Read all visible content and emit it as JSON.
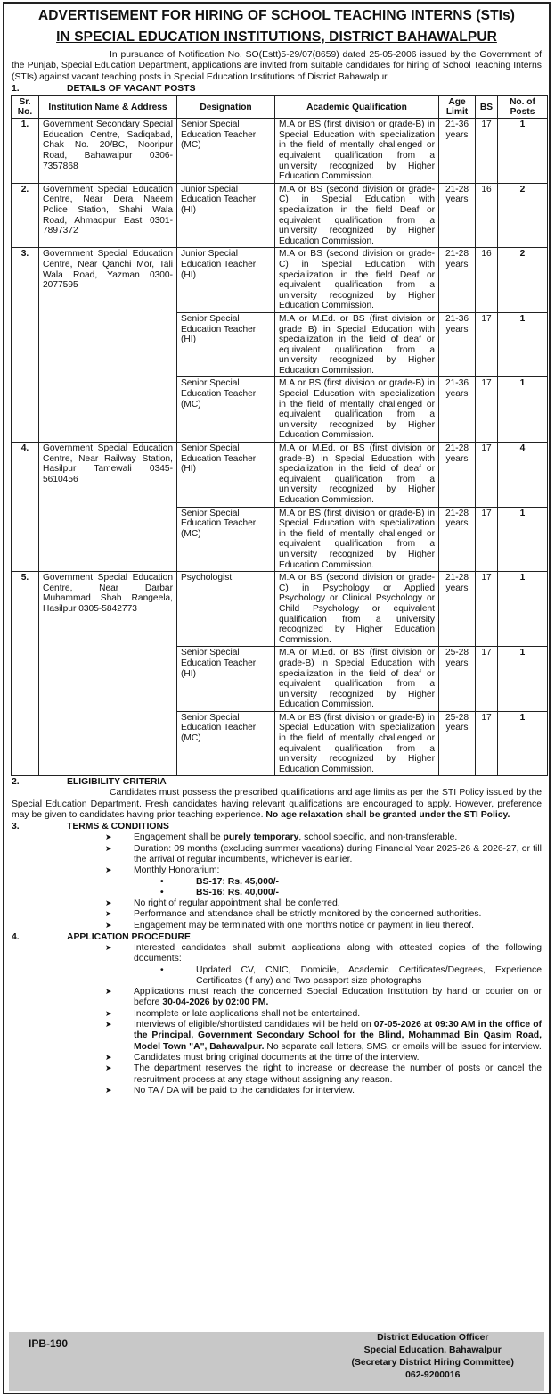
{
  "title_line1": "ADVERTISEMENT FOR HIRING OF SCHOOL TEACHING INTERNS (STIs)",
  "title_line2": "IN SPECIAL EDUCATION INSTITUTIONS, DISTRICT BAHAWALPUR",
  "intro": "In pursuance of Notification No. SO(Estt)5-29/07(8659) dated 25-05-2006 issued by the Government of the Punjab, Special Education Department, applications are invited from suitable candidates for hiring of School Teaching Interns (STIs) against vacant teaching posts in Special Education Institutions of District Bahawalpur.",
  "section1": {
    "num": "1.",
    "heading": "DETAILS OF VACANT POSTS"
  },
  "table": {
    "headers": [
      "Sr. No.",
      "Institution Name & Address",
      "Designation",
      "Academic Qualification",
      "Age Limit",
      "BS",
      "No. of Posts"
    ],
    "institutions": [
      {
        "sr": "1.",
        "address": "Government Secondary Special Education Centre, Sadiqabad, Chak No. 20/BC, Nooripur Road, Bahawalpur 0306-7357868",
        "posts": [
          {
            "designation": "Senior Special Education Teacher (MC)",
            "qualification": "M.A or BS (first division or grade-B) in Special Education with specialization in the field of mentally challenged or equivalent qualification from a university recognized by Higher Education Commission.",
            "age": "21-36 years",
            "bs": "17",
            "count": "1"
          }
        ]
      },
      {
        "sr": "2.",
        "address": "Government Special Education Centre, Near Dera Naeem Police Station, Shahi Wala Road, Ahmadpur East 0301-7897372",
        "posts": [
          {
            "designation": "Junior Special Education Teacher (HI)",
            "qualification": "M.A or BS (second division or grade-C) in Special Education with specialization in the field Deaf or equivalent qualification from a university recognized by Higher Education Commission.",
            "age": "21-28 years",
            "bs": "16",
            "count": "2"
          }
        ]
      },
      {
        "sr": "3.",
        "address": "Government Special Education Centre, Near Qanchi Mor, Tali Wala Road, Yazman 0300-2077595",
        "posts": [
          {
            "designation": "Junior Special Education Teacher (HI)",
            "qualification": "M.A or BS (second division or grade-C) in Special Education with specialization in the field Deaf or equivalent qualification from a university recognized by Higher Education Commission.",
            "age": "21-28 years",
            "bs": "16",
            "count": "2"
          },
          {
            "designation": "Senior Special Education Teacher (HI)",
            "qualification": "M.A or M.Ed. or BS (first division or grade B) in Special Education with specialization in the field of deaf or equivalent qualification from a university recognized by Higher Education Commission.",
            "age": "21-36 years",
            "bs": "17",
            "count": "1"
          },
          {
            "designation": "Senior Special Education Teacher (MC)",
            "qualification": "M.A or BS (first division or grade-B) in Special Education with specialization in the field of mentally challenged or equivalent qualification from a university recognized by Higher Education Commission.",
            "age": "21-36 years",
            "bs": "17",
            "count": "1"
          }
        ]
      },
      {
        "sr": "4.",
        "address": "Government Special Education Centre, Near Railway Station, Hasilpur Tamewali 0345-5610456",
        "posts": [
          {
            "designation": "Senior Special Education Teacher (HI)",
            "qualification": "M.A or M.Ed. or BS (first division or grade-B) in Special Education with specialization in the field of deaf or equivalent qualification from a university recognized by Higher Education Commission.",
            "age": "21-28 years",
            "bs": "17",
            "count": "4"
          },
          {
            "designation": "Senior Special Education Teacher (MC)",
            "qualification": "M.A or BS (first division or grade-B) in Special Education with specialization in the field of mentally challenged or equivalent qualification from a university recognized by Higher Education Commission.",
            "age": "21-28 years",
            "bs": "17",
            "count": "1"
          }
        ]
      },
      {
        "sr": "5.",
        "address": "Government Special Education Centre, Near Darbar Muhammad Shah Rangeela, Hasilpur 0305-5842773",
        "posts": [
          {
            "designation": "Psychologist",
            "qualification": "M.A or BS (second division or grade-C) in Psychology or Applied Psychology or Clinical Psychology or Child Psychology or equivalent qualification from a university recognized by Higher Education Commission.",
            "age": "21-28 years",
            "bs": "17",
            "count": "1"
          },
          {
            "designation": "Senior Special Education Teacher (HI)",
            "qualification": "M.A or M.Ed. or BS (first division or grade-B) in Special Education with specialization in the field of deaf or equivalent qualification from a university recognized by Higher Education Commission.",
            "age": "25-28 years",
            "bs": "17",
            "count": "1"
          },
          {
            "designation": "Senior Special Education Teacher (MC)",
            "qualification": "M.A or BS (first division or grade-B) in Special Education with specialization in the field of mentally challenged or equivalent qualification from a university recognized by Higher Education Commission.",
            "age": "25-28 years",
            "bs": "17",
            "count": "1"
          }
        ]
      }
    ]
  },
  "section2": {
    "num": "2.",
    "heading": "ELIGIBILITY CRITERIA",
    "text": "Candidates must possess the prescribed qualifications and age limits as per the STI Policy issued by the Special Education Department. Fresh candidates having relevant qualifications are encouraged to apply. However, preference may be given to candidates having prior teaching experience.",
    "text_bold": "No age relaxation shall be granted under the STI Policy."
  },
  "section3": {
    "num": "3.",
    "heading": "TERMS & CONDITIONS",
    "items": {
      "engagement_pre": "Engagement shall be ",
      "engagement_bold": "purely temporary",
      "engagement_post": ", school specific, and non-transferable.",
      "duration": "Duration: 09 months (excluding summer vacations) during Financial Year 2025-26 & 2026-27, or till the arrival of regular incumbents, whichever is earlier.",
      "honorarium": "Monthly Honorarium:",
      "bs17": "BS-17: Rs. 45,000/-",
      "bs16": "BS-16: Rs. 40,000/-",
      "no_right": "No right of regular appointment shall be conferred.",
      "performance": "Performance and attendance shall be strictly monitored by the concerned authorities.",
      "termination": "Engagement may be terminated with one month's notice or payment in lieu thereof."
    }
  },
  "section4": {
    "num": "4.",
    "heading": "APPLICATION PROCEDURE",
    "items": {
      "submit": "Interested candidates shall submit applications along with attested copies of the following documents:",
      "documents": "Updated CV, CNIC, Domicile, Academic Certificates/Degrees, Experience Certificates (if any) and Two passport size photographs",
      "reach_pre": "Applications must reach the concerned Special Education Institution by hand or courier on or before ",
      "reach_bold": "30-04-2026 by 02:00 PM.",
      "incomplete": "Incomplete or late applications shall not be entertained.",
      "interview_pre": "Interviews of eligible/shortlisted candidates will be held on ",
      "interview_bold": "07-05-2026 at 09:30 AM in the office of the Principal, Government Secondary School for the Blind, Mohammad Bin Qasim Road, Model Town \"A\", Bahawalpur.",
      "interview_post": " No separate call letters, SMS, or emails will be issued for interview.",
      "originals": "Candidates must bring original documents at the time of the interview.",
      "reserves": "The department reserves the right to increase or decrease the number of posts or cancel the recruitment process at any stage without assigning any reason.",
      "tada": "No TA / DA will be paid to the candidates for interview."
    }
  },
  "footer": {
    "code": "IPB-190",
    "officer": "District Education Officer",
    "office": "Special Education, Bahawalpur",
    "committee": "(Secretary District Hiring Committee)",
    "phone": "062-9200016"
  }
}
